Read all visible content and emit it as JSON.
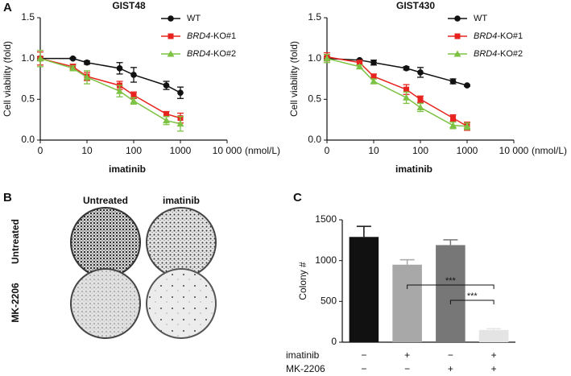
{
  "panels": [
    "A",
    "B",
    "C"
  ],
  "plates": {
    "columns": [
      "Untreated",
      "imatinib"
    ],
    "rows": [
      "Untreated",
      "MK-2206"
    ]
  },
  "chart_data": [
    {
      "type": "line",
      "title": "GIST48",
      "y_label": "Cell viability (fold)",
      "x_label": "imatinib",
      "x_unit": "(nmol/L)",
      "x": [
        0,
        5,
        10,
        50,
        100,
        500,
        1000
      ],
      "xscale": "log",
      "xlim": [
        0,
        10000
      ],
      "xticks": [
        0,
        10,
        100,
        1000,
        {
          "value": 10000,
          "label": "10 000"
        }
      ],
      "ylim": [
        0,
        1.5
      ],
      "yticks": [
        {
          "value": 0,
          "label": "0.0"
        },
        0.5,
        {
          "value": 1,
          "label": "1.0"
        },
        1.5
      ],
      "legend": "upper right",
      "series": [
        {
          "name": "WT",
          "color": "#111111",
          "marker": "circle",
          "values": [
            1.0,
            1.0,
            0.95,
            0.88,
            0.8,
            0.67,
            0.58
          ],
          "errors": [
            0.02,
            0.01,
            0.02,
            0.07,
            0.09,
            0.05,
            0.07
          ]
        },
        {
          "name": "BRD4-KO#1",
          "color": "#e8231f",
          "marker": "square",
          "values": [
            1.0,
            0.9,
            0.78,
            0.67,
            0.55,
            0.32,
            0.27
          ],
          "errors": [
            0.08,
            0.03,
            0.05,
            0.05,
            0.04,
            0.03,
            0.06
          ]
        },
        {
          "name": "BRD4-KO#2",
          "color": "#7dc243",
          "marker": "triangle",
          "values": [
            1.0,
            0.88,
            0.77,
            0.6,
            0.48,
            0.24,
            0.2
          ],
          "errors": [
            0.1,
            0.03,
            0.08,
            0.07,
            0.04,
            0.05,
            0.09
          ]
        }
      ]
    },
    {
      "type": "line",
      "title": "GIST430",
      "y_label": "Cell viability (fold)",
      "x_label": "imatinib",
      "x_unit": "(nmol/L)",
      "x": [
        0,
        5,
        10,
        50,
        100,
        500,
        1000
      ],
      "xscale": "log",
      "xlim": [
        0,
        10000
      ],
      "xticks": [
        0,
        10,
        100,
        1000,
        {
          "value": 10000,
          "label": "10 000"
        }
      ],
      "ylim": [
        0,
        1.5
      ],
      "yticks": [
        {
          "value": 0,
          "label": "0.0"
        },
        0.5,
        {
          "value": 1,
          "label": "1.0"
        },
        1.5
      ],
      "legend": "upper right",
      "series": [
        {
          "name": "WT",
          "color": "#111111",
          "marker": "circle",
          "values": [
            1.0,
            0.98,
            0.95,
            0.88,
            0.83,
            0.72,
            0.67
          ],
          "errors": [
            0.02,
            0.01,
            0.03,
            0.02,
            0.06,
            0.03,
            0.01
          ]
        },
        {
          "name": "BRD4-KO#1",
          "color": "#e8231f",
          "marker": "square",
          "values": [
            1.02,
            0.95,
            0.78,
            0.62,
            0.5,
            0.27,
            0.17
          ],
          "errors": [
            0.05,
            0.02,
            0.03,
            0.06,
            0.04,
            0.04,
            0.05
          ]
        },
        {
          "name": "BRD4-KO#2",
          "color": "#7dc243",
          "marker": "triangle",
          "values": [
            1.0,
            0.9,
            0.72,
            0.52,
            0.4,
            0.18,
            0.17
          ],
          "errors": [
            0.05,
            0.02,
            0.03,
            0.07,
            0.05,
            0.04,
            0.04
          ]
        }
      ]
    },
    {
      "type": "bar",
      "y_label": "Colony #",
      "values": [
        1290,
        950,
        1190,
        150
      ],
      "errors": [
        130,
        60,
        65,
        15
      ],
      "colors": [
        "#111111",
        "#a8a8a8",
        "#777777",
        "#e4e4e4"
      ],
      "ylim": [
        0,
        1500
      ],
      "yticks": [
        0,
        500,
        1000,
        1500
      ],
      "significance": [
        "***",
        "***"
      ],
      "treatments": [
        {
          "name": "imatinib",
          "signs": [
            "−",
            "+",
            "−",
            "+"
          ]
        },
        {
          "name": "MK-2206",
          "signs": [
            "−",
            "−",
            "+",
            "+"
          ]
        }
      ]
    }
  ]
}
